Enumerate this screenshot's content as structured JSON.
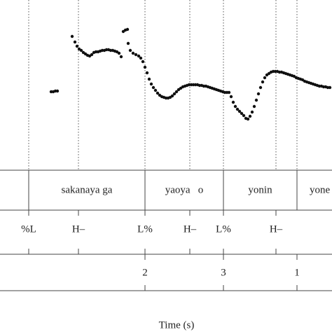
{
  "chart_data": {
    "type": "scatter",
    "xlabel": "Time (s)",
    "xlim": [
      0,
      4.74
    ],
    "ylim": [
      0,
      243
    ],
    "color": "#111111",
    "x": [
      0.73,
      0.76,
      0.79,
      0.82,
      1.03,
      1.07,
      1.1,
      1.13,
      1.16,
      1.19,
      1.22,
      1.25,
      1.28,
      1.31,
      1.34,
      1.37,
      1.4,
      1.43,
      1.46,
      1.49,
      1.52,
      1.55,
      1.58,
      1.61,
      1.64,
      1.67,
      1.7,
      1.73,
      1.76,
      1.79,
      1.82,
      1.83,
      1.86,
      1.9,
      1.94,
      1.98,
      2.01,
      2.04,
      2.07,
      2.1,
      2.13,
      2.16,
      2.19,
      2.22,
      2.25,
      2.28,
      2.31,
      2.34,
      2.37,
      2.4,
      2.43,
      2.46,
      2.49,
      2.52,
      2.55,
      2.58,
      2.61,
      2.64,
      2.67,
      2.7,
      2.73,
      2.76,
      2.79,
      2.82,
      2.85,
      2.88,
      2.91,
      2.94,
      2.97,
      3.0,
      3.03,
      3.06,
      3.09,
      3.12,
      3.15,
      3.18,
      3.21,
      3.24,
      3.27,
      3.3,
      3.33,
      3.36,
      3.39,
      3.42,
      3.45,
      3.48,
      3.51,
      3.54,
      3.57,
      3.6,
      3.63,
      3.66,
      3.69,
      3.72,
      3.75,
      3.78,
      3.81,
      3.84,
      3.87,
      3.9,
      3.93,
      3.96,
      3.99,
      4.02,
      4.05,
      4.08,
      4.11,
      4.14,
      4.17,
      4.2,
      4.23,
      4.26,
      4.29,
      4.32,
      4.35,
      4.38,
      4.41,
      4.44,
      4.47,
      4.5,
      4.53,
      4.56,
      4.59,
      4.62,
      4.65,
      4.68,
      4.71
    ],
    "values": [
      112,
      112,
      113,
      113,
      191,
      183,
      177,
      173,
      171,
      168,
      166,
      164,
      163,
      165,
      168,
      169,
      169,
      170,
      171,
      171,
      172,
      172,
      171,
      171,
      170,
      169,
      167,
      162,
      198,
      200,
      201,
      181,
      171,
      167,
      165,
      163,
      160,
      155,
      147,
      139,
      130,
      123,
      118,
      114,
      110,
      107,
      105,
      104,
      103,
      103,
      104,
      106,
      109,
      112,
      115,
      117,
      119,
      120,
      121,
      122,
      122,
      122,
      122,
      122,
      121,
      121,
      120,
      120,
      119,
      118,
      117,
      116,
      115,
      114,
      113,
      112,
      111,
      111,
      111,
      105,
      97,
      91,
      87,
      84,
      81,
      78,
      74,
      73,
      77,
      83,
      91,
      100,
      109,
      118,
      126,
      132,
      136,
      138,
      140,
      141,
      141,
      141,
      140,
      140,
      139,
      138,
      137,
      136,
      135,
      134,
      132,
      131,
      130,
      129,
      127,
      126,
      125,
      124,
      123,
      122,
      121,
      120,
      120,
      119,
      119,
      118,
      118
    ],
    "words": [
      {
        "label": "sakanaya ga",
        "start": 0.41,
        "end": 2.07
      },
      {
        "label": "yaoya   o",
        "start": 2.07,
        "end": 3.19
      },
      {
        "label": "yonin",
        "start": 3.19,
        "end": 4.24
      },
      {
        "label": "yone",
        "start": 4.24,
        "end": 4.74
      }
    ],
    "tones": [
      {
        "label": "%L",
        "time": 0.41
      },
      {
        "label": "H–",
        "time": 1.12
      },
      {
        "label": "L%",
        "time": 2.07
      },
      {
        "label": "H–",
        "time": 2.71
      },
      {
        "label": "L%",
        "time": 3.19
      },
      {
        "label": "H–",
        "time": 3.94
      }
    ],
    "breaks": [
      {
        "label": "2",
        "time": 2.07
      },
      {
        "label": "3",
        "time": 3.19
      },
      {
        "label": "1",
        "time": 4.24
      }
    ]
  }
}
